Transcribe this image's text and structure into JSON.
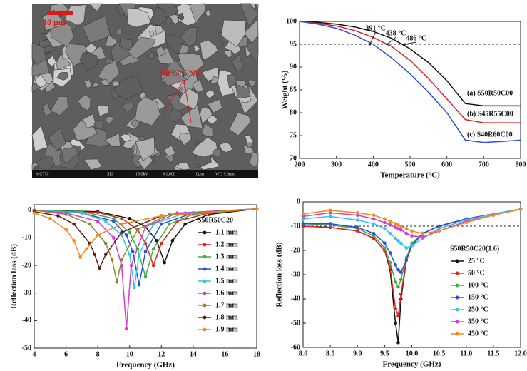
{
  "image": {
    "scale_label": "10 μm",
    "label": "SiO2/CNT",
    "info_bar": [
      "MCTU",
      "SEI",
      "15.0kV",
      "X1,000",
      "10μm",
      "WD 9.0mm"
    ]
  },
  "chart_data": [
    {
      "type": "line",
      "xlabel": "Temperature (°C)",
      "ylabel": "Weight (%)",
      "x": [
        200,
        250,
        300,
        350,
        400,
        450,
        500,
        550,
        600,
        650,
        700,
        750,
        800
      ],
      "series": [
        {
          "name": "(a) S50R50C00",
          "color": "#111111",
          "values": [
            100,
            99.8,
            99.4,
            98.8,
            97.8,
            96.3,
            94,
            91,
            87,
            82,
            81.5,
            81.5,
            81.5
          ]
        },
        {
          "name": "(b) S45R55C00",
          "color": "#e02020",
          "values": [
            100,
            99.6,
            99,
            98,
            96.5,
            94.5,
            91.5,
            87.5,
            83,
            78.5,
            77.8,
            77.8,
            77.8
          ]
        },
        {
          "name": "(c) S40R60C00",
          "color": "#2a4fd8",
          "values": [
            100,
            99.4,
            98.5,
            97,
            95,
            92,
            88.5,
            84.5,
            80,
            74,
            73.5,
            73.7,
            74
          ]
        }
      ],
      "xlim": [
        200,
        800
      ],
      "xticks": [
        200,
        300,
        400,
        500,
        600,
        700,
        800
      ],
      "ylim": [
        70,
        100
      ],
      "yticks": [
        70,
        75,
        80,
        85,
        90,
        95,
        100
      ],
      "hline": 95,
      "grid": false,
      "legend": "text",
      "annotations": [
        {
          "text": "391 °C",
          "x": 391,
          "y": 95
        },
        {
          "text": "438 °C",
          "x": 438,
          "y": 95
        },
        {
          "text": "486 °C",
          "x": 486,
          "y": 95
        }
      ]
    },
    {
      "type": "line",
      "xlabel": "Frequency (GHz)",
      "ylabel": "Reflection loss (dB)",
      "legend_title": "S50R50C20",
      "series": [
        {
          "name": "1.1 mm",
          "color": "#111111",
          "x": [
            4,
            8,
            10,
            11,
            11.7,
            12.2,
            12.7,
            13.5,
            15,
            18
          ],
          "values": [
            0,
            -0.5,
            -3,
            -6,
            -11,
            -19,
            -11,
            -5,
            -1.5,
            0.5
          ]
        },
        {
          "name": "1.2 mm",
          "color": "#e02020",
          "x": [
            4,
            8,
            9.5,
            10.5,
            11,
            11.5,
            12,
            13,
            15,
            18
          ],
          "values": [
            0,
            -0.8,
            -3,
            -7,
            -12,
            -20,
            -12,
            -4,
            -1,
            0.5
          ]
        },
        {
          "name": "1.3 mm",
          "color": "#3cb043",
          "x": [
            4,
            7,
            9,
            10,
            10.5,
            11,
            11.5,
            12.5,
            14,
            18
          ],
          "values": [
            0,
            -0.5,
            -3,
            -8,
            -14,
            -24,
            -14,
            -5,
            -1.5,
            0.5
          ]
        },
        {
          "name": "1.4 mm",
          "color": "#2a4fd8",
          "x": [
            4,
            7,
            9,
            9.8,
            10.2,
            10.6,
            11,
            12,
            14,
            18
          ],
          "values": [
            0,
            -1,
            -4,
            -9,
            -15,
            -27,
            -15,
            -5,
            -1,
            0.5
          ]
        },
        {
          "name": "1.5 mm",
          "color": "#33c6e6",
          "x": [
            4,
            7,
            8.5,
            9.5,
            10,
            10.3,
            10.6,
            11.5,
            13.5,
            18
          ],
          "values": [
            0,
            -1,
            -4,
            -9,
            -16,
            -28,
            -16,
            -5,
            -1,
            0.5
          ]
        },
        {
          "name": "1.6 mm",
          "color": "#d63ad6",
          "x": [
            4,
            6,
            8,
            9,
            9.5,
            9.8,
            10.1,
            11,
            13,
            18
          ],
          "values": [
            0,
            -1,
            -4,
            -10,
            -20,
            -43,
            -20,
            -6,
            -1,
            0.5
          ]
        },
        {
          "name": "1.7 mm",
          "color": "#8a8a2a",
          "x": [
            4,
            6,
            7.5,
            8.5,
            8.9,
            9.2,
            9.5,
            10.5,
            12.5,
            18
          ],
          "values": [
            0,
            -1.5,
            -5,
            -12,
            -18,
            -26,
            -18,
            -7,
            -1.5,
            0.5
          ]
        },
        {
          "name": "1.8 mm",
          "color": "#6b1a1a",
          "x": [
            4,
            5.5,
            6.5,
            7.5,
            7.8,
            8.1,
            8.5,
            9.5,
            12,
            18
          ],
          "values": [
            -0.5,
            -2,
            -5,
            -12,
            -16,
            -21,
            -16,
            -8,
            -2,
            0.5
          ]
        },
        {
          "name": "1.9 mm",
          "color": "#f08a1c",
          "x": [
            4,
            5,
            6,
            6.5,
            6.9,
            7.3,
            8,
            9.5,
            12,
            18
          ],
          "values": [
            -1,
            -3,
            -7,
            -11,
            -17,
            -14,
            -9,
            -5,
            -2,
            0.5
          ]
        }
      ],
      "xlim": [
        4,
        18
      ],
      "xticks": [
        4,
        6,
        8,
        10,
        12,
        14,
        16,
        18
      ],
      "ylim": [
        -50,
        2
      ],
      "yticks": [
        -50,
        -40,
        -30,
        -20,
        -10,
        0
      ],
      "grid": false,
      "markers": true,
      "legend": "right"
    },
    {
      "type": "line",
      "xlabel": "Frequency (GHz)",
      "ylabel": "Reflection loss (dB)",
      "legend_title": "S50R50C20(1.6)",
      "x": [
        8,
        8.5,
        9,
        9.3,
        9.5,
        9.6,
        9.7,
        9.75,
        9.8,
        9.9,
        10,
        10.2,
        10.5,
        11,
        11.5,
        12
      ],
      "series": [
        {
          "name": "25 °C",
          "color": "#111111",
          "values": [
            -10,
            -10.5,
            -12,
            -15,
            -20,
            -28,
            -50,
            -58,
            -40,
            -24,
            -18,
            -13,
            -10,
            -7,
            -5,
            -3
          ]
        },
        {
          "name": "50 °C",
          "color": "#e02020",
          "values": [
            -10,
            -10.5,
            -12,
            -15,
            -20,
            -27,
            -44,
            -47,
            -38,
            -24,
            -18,
            -13,
            -10,
            -7,
            -5,
            -3
          ]
        },
        {
          "name": "100 °C",
          "color": "#3cb043",
          "values": [
            -9,
            -9.5,
            -11,
            -14,
            -19,
            -25,
            -33,
            -35,
            -32,
            -23,
            -17,
            -13,
            -10,
            -7,
            -5,
            -3
          ]
        },
        {
          "name": "150 °C",
          "color": "#2a4fd8",
          "values": [
            -9,
            -9,
            -10.5,
            -13,
            -17,
            -21,
            -26,
            -28,
            -29,
            -24,
            -18,
            -13,
            -10,
            -7,
            -5,
            -3
          ]
        },
        {
          "name": "250 °C",
          "color": "#33c6e6",
          "values": [
            -7,
            -6,
            -7.5,
            -9,
            -11,
            -13,
            -15,
            -16,
            -17,
            -19,
            -18,
            -15,
            -11,
            -7.5,
            -5,
            -3
          ]
        },
        {
          "name": "350 °C",
          "color": "#d63ad6",
          "values": [
            -6,
            -4.5,
            -5.5,
            -7,
            -8.5,
            -9.5,
            -10.5,
            -11,
            -11.5,
            -13,
            -14,
            -14.5,
            -12,
            -8,
            -5.5,
            -3
          ]
        },
        {
          "name": "450 °C",
          "color": "#f08a1c",
          "values": [
            -5,
            -3.5,
            -4.5,
            -5.5,
            -7,
            -8,
            -9,
            -9.5,
            -10,
            -11,
            -12,
            -13,
            -12,
            -8.5,
            -5.5,
            -3
          ]
        }
      ],
      "xlim": [
        8,
        12
      ],
      "xticks": [
        {
          "value": 8,
          "label": "8.0"
        },
        {
          "value": 8.5,
          "label": "8.5"
        },
        {
          "value": 9,
          "label": "9.0"
        },
        {
          "value": 9.5,
          "label": "9.5"
        },
        {
          "value": 10,
          "label": "10.0"
        },
        {
          "value": 10.5,
          "label": "10.5"
        },
        {
          "value": 11,
          "label": "11.0"
        },
        {
          "value": 11.5,
          "label": "11.5"
        },
        {
          "value": 12,
          "label": "12.0"
        }
      ],
      "ylim": [
        -60,
        0
      ],
      "yticks": [
        -60,
        -50,
        -40,
        -30,
        -20,
        -10,
        0
      ],
      "hline": -10,
      "grid": false,
      "markers": true,
      "legend": "right"
    }
  ]
}
